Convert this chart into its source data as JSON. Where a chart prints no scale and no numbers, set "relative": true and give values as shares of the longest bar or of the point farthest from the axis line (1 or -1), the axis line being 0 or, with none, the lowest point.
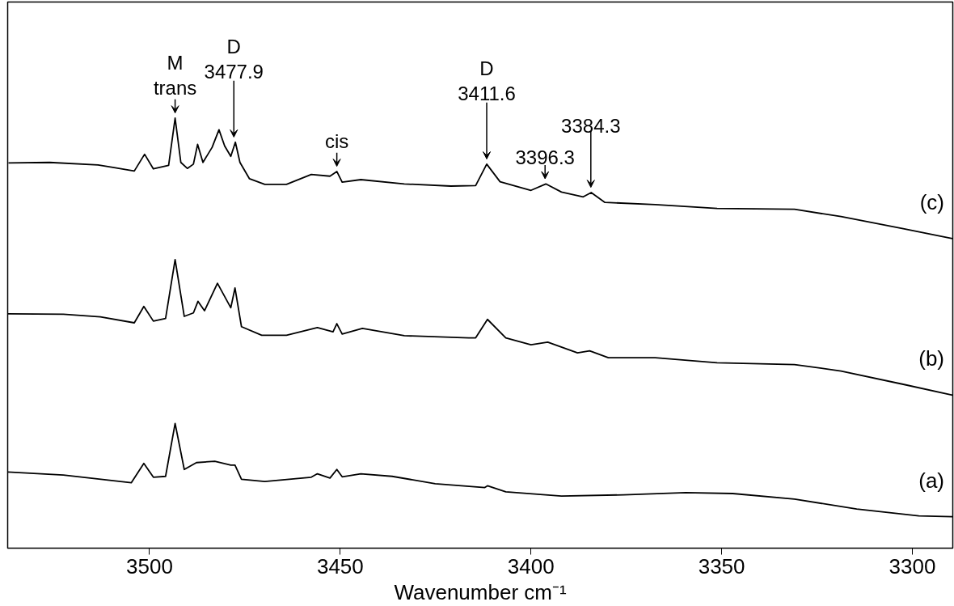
{
  "chart_data": {
    "type": "line",
    "relative": true,
    "xlabel": "Wavenumber cm⁻¹",
    "xlim": [
      3537.2,
      3289.4
    ],
    "xticks": [
      3500,
      3450,
      3400,
      3350,
      3300
    ],
    "series": [
      {
        "name": "(c)",
        "color": "#000000",
        "x": [
          3537.0,
          3526.2,
          3513.5,
          3509.3,
          3504.0,
          3501.3,
          3499.0,
          3495.0,
          3493.3,
          3491.8,
          3490.1,
          3488.5,
          3487.4,
          3486.0,
          3483.6,
          3481.8,
          3480.3,
          3478.7,
          3477.5,
          3476.3,
          3473.8,
          3469.8,
          3464.1,
          3457.6,
          3452.7,
          3450.9,
          3449.5,
          3444.6,
          3433.2,
          3421.0,
          3414.5,
          3411.6,
          3408.1,
          3400.0,
          3396.1,
          3392.0,
          3386.3,
          3384.2,
          3380.6,
          3367.4,
          3351.2,
          3330.9,
          3318.7,
          3302.4,
          3289.5
        ],
        "values": [
          0.896,
          0.897,
          0.891,
          0.885,
          0.877,
          0.916,
          0.882,
          0.89,
          1.0,
          0.897,
          0.883,
          0.893,
          0.939,
          0.897,
          0.932,
          0.973,
          0.935,
          0.911,
          0.944,
          0.897,
          0.859,
          0.846,
          0.846,
          0.869,
          0.865,
          0.876,
          0.851,
          0.857,
          0.847,
          0.842,
          0.843,
          0.893,
          0.852,
          0.832,
          0.847,
          0.828,
          0.817,
          0.827,
          0.804,
          0.799,
          0.79,
          0.788,
          0.771,
          0.743,
          0.72
        ]
      },
      {
        "name": "(b)",
        "color": "#000000",
        "x": [
          3537.2,
          3522.6,
          3512.9,
          3504.0,
          3501.5,
          3499.0,
          3495.8,
          3493.3,
          3490.9,
          3488.5,
          3487.3,
          3485.6,
          3482.2,
          3478.7,
          3477.6,
          3475.9,
          3470.6,
          3464.1,
          3456.0,
          3451.9,
          3450.9,
          3449.5,
          3444.2,
          3433.2,
          3416.3,
          3414.5,
          3411.4,
          3406.6,
          3400.0,
          3395.6,
          3387.8,
          3384.6,
          3379.7,
          3367.4,
          3351.2,
          3330.9,
          3318.7,
          3302.4,
          3289.5
        ],
        "values": [
          0.545,
          0.544,
          0.538,
          0.524,
          0.562,
          0.528,
          0.534,
          0.671,
          0.539,
          0.547,
          0.574,
          0.552,
          0.616,
          0.559,
          0.605,
          0.515,
          0.495,
          0.495,
          0.513,
          0.503,
          0.522,
          0.498,
          0.511,
          0.494,
          0.489,
          0.489,
          0.532,
          0.489,
          0.473,
          0.479,
          0.454,
          0.459,
          0.443,
          0.443,
          0.431,
          0.427,
          0.412,
          0.381,
          0.356
        ]
      },
      {
        "name": "(a)",
        "color": "#000000",
        "x": [
          3537.2,
          3522.6,
          3504.8,
          3501.5,
          3499.0,
          3495.8,
          3493.3,
          3490.9,
          3487.7,
          3482.9,
          3478.7,
          3477.6,
          3475.9,
          3469.8,
          3457.6,
          3456.0,
          3452.7,
          3450.9,
          3449.5,
          3444.6,
          3436.4,
          3425.1,
          3412.1,
          3411.4,
          3406.6,
          3392.0,
          3375.7,
          3359.4,
          3347.1,
          3330.9,
          3314.6,
          3298.3,
          3289.5
        ],
        "values": [
          0.177,
          0.17,
          0.152,
          0.197,
          0.165,
          0.167,
          0.29,
          0.183,
          0.199,
          0.202,
          0.193,
          0.193,
          0.16,
          0.155,
          0.165,
          0.173,
          0.163,
          0.183,
          0.166,
          0.173,
          0.167,
          0.15,
          0.141,
          0.145,
          0.131,
          0.121,
          0.124,
          0.129,
          0.127,
          0.114,
          0.091,
          0.075,
          0.073
        ]
      }
    ],
    "annotations": [
      {
        "text": "M\ntrans",
        "x": 3493.3,
        "y": 1.0
      },
      {
        "text": "D\n3477.9",
        "x": 3477.9,
        "y": 0.944
      },
      {
        "text": "cis",
        "x": 3450.9,
        "y": 0.876
      },
      {
        "text": "D\n3411.6",
        "x": 3411.6,
        "y": 0.893
      },
      {
        "text": "3396.3",
        "x": 3396.3,
        "y": 0.847
      },
      {
        "text": "3384.3",
        "x": 3384.3,
        "y": 0.827
      }
    ]
  }
}
